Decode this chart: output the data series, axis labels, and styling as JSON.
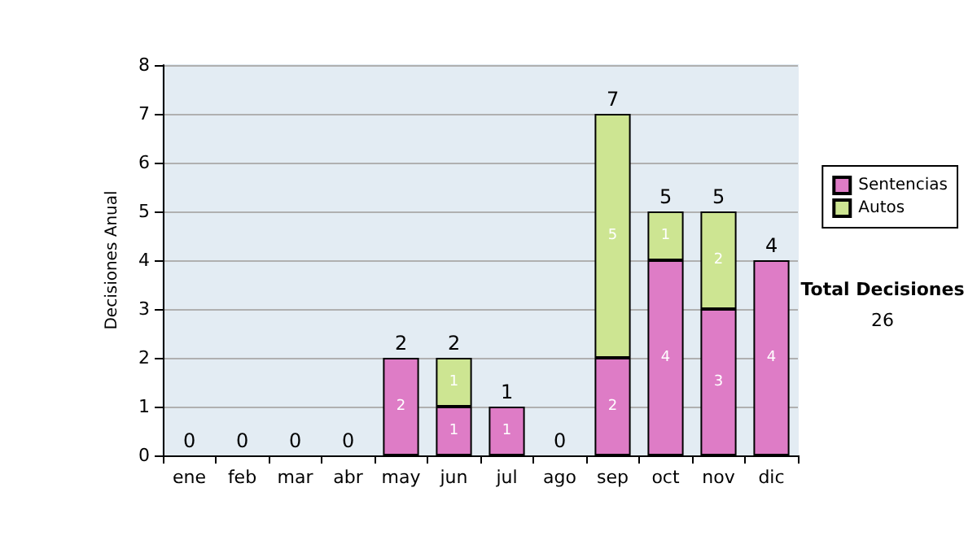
{
  "chart_data": {
    "type": "bar",
    "stacked": true,
    "ylabel": "Decisiones Anual",
    "categories": [
      "ene",
      "feb",
      "mar",
      "abr",
      "may",
      "jun",
      "jul",
      "ago",
      "sep",
      "oct",
      "nov",
      "dic"
    ],
    "series": [
      {
        "name": "Sentencias",
        "color": "#de7cc6",
        "values": [
          0,
          0,
          0,
          0,
          2,
          1,
          1,
          0,
          2,
          4,
          3,
          4
        ],
        "value_labels": [
          null,
          null,
          null,
          null,
          "2",
          "1",
          "1",
          null,
          "2",
          "4",
          "3",
          "4"
        ]
      },
      {
        "name": "Autos",
        "color": "#cde592",
        "values": [
          0,
          0,
          0,
          0,
          0,
          1,
          0,
          0,
          5,
          1,
          2,
          0
        ],
        "value_labels": [
          null,
          null,
          null,
          null,
          null,
          "1",
          null,
          null,
          "5",
          "1",
          "2",
          null
        ]
      }
    ],
    "totals": [
      "0",
      "0",
      "0",
      "0",
      "2",
      "2",
      "1",
      "0",
      "7",
      "5",
      "5",
      "4"
    ],
    "ylim": [
      0,
      8
    ],
    "yticks": [
      0,
      1,
      2,
      3,
      4,
      5,
      6,
      7,
      8
    ],
    "grid": "y",
    "legend": "right",
    "annotations": [
      "Total Decisiones",
      "26"
    ]
  }
}
